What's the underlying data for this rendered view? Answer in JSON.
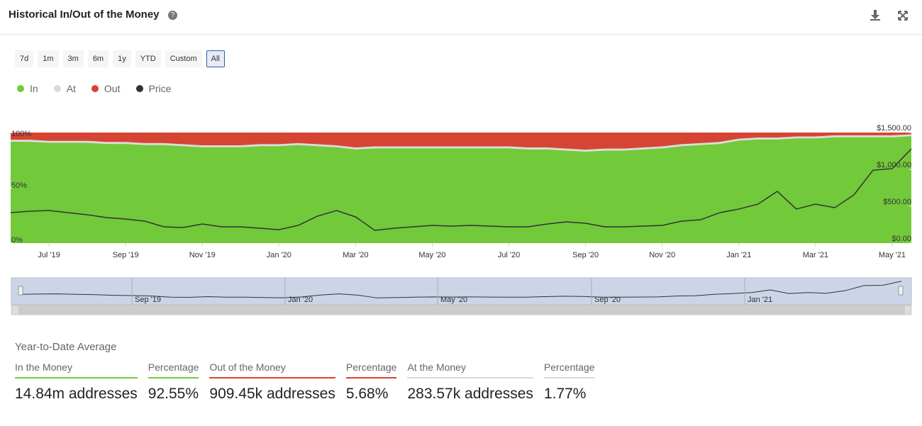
{
  "header": {
    "title": "Historical In/Out of the Money",
    "ranges": [
      "7d",
      "1m",
      "3m",
      "6m",
      "1y",
      "YTD",
      "Custom",
      "All"
    ],
    "selected": "All"
  },
  "chart_data": {
    "type": "area",
    "categories": [
      null,
      null,
      "Jul '19",
      null,
      null,
      null,
      "Sep '19",
      null,
      null,
      null,
      "Nov '19",
      null,
      null,
      null,
      "Jan '20",
      null,
      null,
      null,
      "Mar '20",
      null,
      null,
      null,
      "May '20",
      null,
      null,
      null,
      "Jul '20",
      null,
      null,
      null,
      "Sep '20",
      null,
      null,
      null,
      "Nov '20",
      null,
      null,
      null,
      "Jan '21",
      null,
      null,
      null,
      "Mar '21",
      null,
      null,
      null,
      "May '21",
      null
    ],
    "series": [
      {
        "name": "In",
        "color": "#72c93a",
        "values": [
          92,
          92,
          91,
          91,
          91,
          90,
          90,
          89,
          89,
          88,
          87,
          87,
          87,
          88,
          88,
          89,
          88,
          87,
          85,
          86,
          86,
          86,
          86,
          86,
          86,
          86,
          86,
          85,
          85,
          84,
          83,
          84,
          84,
          85,
          86,
          88,
          89,
          90,
          93,
          94,
          94,
          95,
          95,
          96,
          96,
          96,
          96,
          97
        ]
      },
      {
        "name": "At",
        "color": "#d9d9d9",
        "values": [
          1.5,
          1.5,
          1.5,
          1.5,
          1.5,
          1.5,
          1.5,
          1.5,
          1.5,
          1.5,
          1.5,
          1.5,
          1.5,
          1.5,
          1.5,
          1.5,
          1.5,
          1.5,
          1.5,
          1.5,
          1.5,
          1.5,
          1.5,
          1.5,
          1.5,
          1.5,
          1.5,
          1.5,
          1.5,
          1.5,
          1.5,
          1.5,
          1.5,
          1.5,
          1.5,
          1.5,
          1.5,
          1.5,
          1.5,
          1.5,
          1.5,
          1.5,
          1.5,
          1.5,
          1.5,
          1.5,
          1.5,
          1.5
        ]
      },
      {
        "name": "Out",
        "color": "#d64533",
        "values": [
          6.5,
          6.5,
          7.5,
          7.5,
          7.5,
          8.5,
          8.5,
          9.5,
          9.5,
          10.5,
          11.5,
          11.5,
          11.5,
          10.5,
          10.5,
          9.5,
          10.5,
          11.5,
          13.5,
          12.5,
          12.5,
          12.5,
          12.5,
          12.5,
          12.5,
          12.5,
          12.5,
          13.5,
          13.5,
          14.5,
          15.5,
          14.5,
          14.5,
          13.5,
          12.5,
          10.5,
          9.5,
          8.5,
          5.5,
          4.5,
          4.5,
          3.5,
          3.5,
          2.5,
          2.5,
          2.5,
          2.5,
          1.5
        ]
      },
      {
        "name": "Price",
        "color": "#333333",
        "axis": "y2",
        "values": [
          413,
          433,
          442,
          413,
          385,
          346,
          327,
          298,
          221,
          212,
          260,
          221,
          221,
          202,
          183,
          240,
          365,
          442,
          356,
          173,
          202,
          221,
          240,
          231,
          240,
          231,
          221,
          221,
          260,
          288,
          269,
          221,
          221,
          231,
          240,
          298,
          317,
          413,
          462,
          529,
          702,
          462,
          529,
          481,
          654,
          990,
          1010,
          1279
        ]
      }
    ],
    "ylim": [
      0,
      100
    ],
    "yticks": [
      {
        "value": 0,
        "label": "0%"
      },
      {
        "value": 50,
        "label": "50%"
      },
      {
        "value": 100,
        "label": "100%"
      }
    ],
    "y2lim": [
      0,
      1500
    ],
    "y2ticks": [
      {
        "value": 0,
        "label": "$0.00"
      },
      {
        "value": 500,
        "label": "$500.00"
      },
      {
        "value": 1000,
        "label": "$1,000.00"
      },
      {
        "value": 1500,
        "label": "$1,500.00"
      }
    ],
    "stacked": true
  },
  "navigator": {
    "labels": [
      "Sep '19",
      "Jan '20",
      "May '20",
      "Sep '20",
      "Jan '21"
    ]
  },
  "summary": {
    "title": "Year-to-Date Average",
    "columns": [
      {
        "header": "In the Money",
        "value": "14.84m addresses",
        "color": "#72c93a"
      },
      {
        "header": "Percentage",
        "value": "92.55%",
        "color": "#72c93a"
      },
      {
        "header": "Out of the Money",
        "value": "909.45k addresses",
        "color": "#d64533"
      },
      {
        "header": "Percentage",
        "value": "5.68%",
        "color": "#d64533"
      },
      {
        "header": "At the Money",
        "value": "283.57k addresses",
        "color": "#d9d9d9"
      },
      {
        "header": "Percentage",
        "value": "1.77%",
        "color": "#d9d9d9"
      }
    ]
  }
}
